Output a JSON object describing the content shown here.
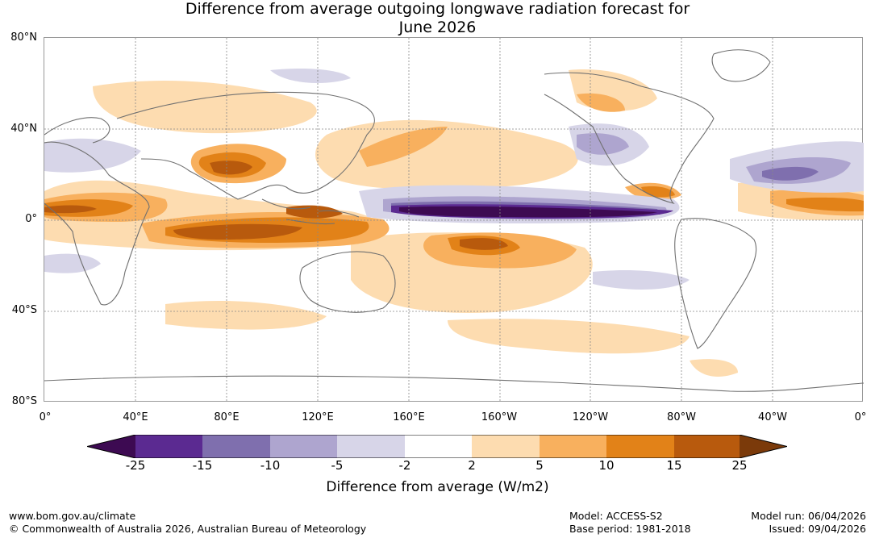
{
  "title": {
    "line1": "Difference from average outgoing longwave radiation forecast for",
    "line2": "June 2026"
  },
  "map": {
    "lat_labels": [
      "80°N",
      "40°N",
      "0°",
      "40°S",
      "80°S"
    ],
    "lon_labels": [
      "0°",
      "40°E",
      "80°E",
      "120°E",
      "160°E",
      "160°W",
      "120°W",
      "80°W",
      "40°W",
      "0°"
    ]
  },
  "legend": {
    "bins": [
      {
        "color": "#3d0a52"
      },
      {
        "color": "#5b2a91"
      },
      {
        "color": "#7f6fae"
      },
      {
        "color": "#aea5cf"
      },
      {
        "color": "#d7d5e8"
      },
      {
        "color": "#ffffff"
      },
      {
        "color": "#fddcb0"
      },
      {
        "color": "#f8b05e"
      },
      {
        "color": "#e28218"
      },
      {
        "color": "#b85a0d"
      },
      {
        "color": "#7b3a0a"
      }
    ],
    "ticks": [
      "-25",
      "-15",
      "-10",
      "-5",
      "-2",
      "2",
      "5",
      "10",
      "15",
      "25"
    ],
    "label": "Difference from average (W/m2)"
  },
  "footer": {
    "website": "www.bom.gov.au/climate",
    "copyright": "© Commonwealth of Australia 2026, Australian Bureau of Meteorology",
    "model": "Model: ACCESS-S2",
    "base_period": "Base period: 1981-2018",
    "model_run": "Model run: 06/04/2026",
    "issued": "Issued: 09/04/2026"
  }
}
